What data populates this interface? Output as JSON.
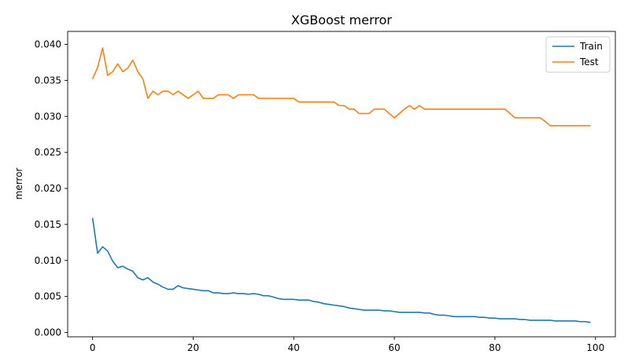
{
  "chart_data": {
    "type": "line",
    "title": "XGBoost merror",
    "xlabel": "",
    "ylabel": "merror",
    "xlim": [
      -4.95,
      103.95
    ],
    "ylim": [
      -0.0006,
      0.0418
    ],
    "xticks": [
      0,
      20,
      40,
      60,
      80,
      100
    ],
    "yticks": [
      0.0,
      0.005,
      0.01,
      0.015,
      0.02,
      0.025,
      0.03,
      0.035,
      0.04
    ],
    "ytick_labels": [
      "0.000",
      "0.005",
      "0.010",
      "0.015",
      "0.020",
      "0.025",
      "0.030",
      "0.035",
      "0.040"
    ],
    "grid": false,
    "legend_position": "top-right",
    "series": [
      {
        "name": "Train",
        "color": "#1f77b4",
        "x": [
          0,
          1,
          2,
          3,
          4,
          5,
          6,
          7,
          8,
          9,
          10,
          11,
          12,
          13,
          14,
          15,
          16,
          17,
          18,
          19,
          20,
          21,
          22,
          23,
          24,
          25,
          26,
          27,
          28,
          29,
          30,
          31,
          32,
          33,
          34,
          35,
          36,
          37,
          38,
          39,
          40,
          41,
          42,
          43,
          44,
          45,
          46,
          47,
          48,
          49,
          50,
          51,
          52,
          53,
          54,
          55,
          56,
          57,
          58,
          59,
          60,
          61,
          62,
          63,
          64,
          65,
          66,
          67,
          68,
          69,
          70,
          71,
          72,
          73,
          74,
          75,
          76,
          77,
          78,
          79,
          80,
          81,
          82,
          83,
          84,
          85,
          86,
          87,
          88,
          89,
          90,
          91,
          92,
          93,
          94,
          95,
          96,
          97,
          98,
          99
        ],
        "y": [
          0.0159,
          0.011,
          0.0119,
          0.0113,
          0.0099,
          0.009,
          0.0092,
          0.0088,
          0.0085,
          0.0076,
          0.0073,
          0.0076,
          0.007,
          0.0067,
          0.0063,
          0.006,
          0.006,
          0.0065,
          0.0062,
          0.0061,
          0.006,
          0.0059,
          0.0058,
          0.0058,
          0.0055,
          0.0055,
          0.0054,
          0.0054,
          0.0055,
          0.0054,
          0.0054,
          0.0053,
          0.0054,
          0.0053,
          0.0051,
          0.0051,
          0.0049,
          0.0047,
          0.0046,
          0.0046,
          0.0046,
          0.0045,
          0.0045,
          0.0045,
          0.0043,
          0.0042,
          0.004,
          0.0039,
          0.0038,
          0.0037,
          0.0036,
          0.0034,
          0.0033,
          0.0032,
          0.0031,
          0.0031,
          0.0031,
          0.0031,
          0.003,
          0.003,
          0.0029,
          0.0028,
          0.0028,
          0.0028,
          0.0028,
          0.0028,
          0.0027,
          0.0027,
          0.0025,
          0.0024,
          0.0024,
          0.0023,
          0.0022,
          0.0022,
          0.0022,
          0.0022,
          0.0022,
          0.0021,
          0.0021,
          0.002,
          0.002,
          0.0019,
          0.0019,
          0.0019,
          0.0019,
          0.0018,
          0.0018,
          0.0017,
          0.0017,
          0.0017,
          0.0017,
          0.0017,
          0.0016,
          0.0016,
          0.0016,
          0.0016,
          0.0016,
          0.0015,
          0.0015,
          0.0014
        ]
      },
      {
        "name": "Test",
        "color": "#ff7f0e",
        "x": [
          0,
          1,
          2,
          3,
          4,
          5,
          6,
          7,
          8,
          9,
          10,
          11,
          12,
          13,
          14,
          15,
          16,
          17,
          18,
          19,
          20,
          21,
          22,
          23,
          24,
          25,
          26,
          27,
          28,
          29,
          30,
          31,
          32,
          33,
          34,
          35,
          36,
          37,
          38,
          39,
          40,
          41,
          42,
          43,
          44,
          45,
          46,
          47,
          48,
          49,
          50,
          51,
          52,
          53,
          54,
          55,
          56,
          57,
          58,
          59,
          60,
          61,
          62,
          63,
          64,
          65,
          66,
          67,
          68,
          69,
          70,
          71,
          72,
          73,
          74,
          75,
          76,
          77,
          78,
          79,
          80,
          81,
          82,
          83,
          84,
          85,
          86,
          87,
          88,
          89,
          90,
          91,
          92,
          93,
          94,
          95,
          96,
          97,
          98,
          99
        ],
        "y": [
          0.0352,
          0.0368,
          0.0395,
          0.0357,
          0.0362,
          0.0373,
          0.0362,
          0.0367,
          0.0378,
          0.0362,
          0.0352,
          0.0325,
          0.0335,
          0.033,
          0.0335,
          0.0335,
          0.033,
          0.0335,
          0.033,
          0.0325,
          0.033,
          0.0335,
          0.0325,
          0.0325,
          0.0325,
          0.033,
          0.033,
          0.033,
          0.0325,
          0.033,
          0.033,
          0.033,
          0.033,
          0.0325,
          0.0325,
          0.0325,
          0.0325,
          0.0325,
          0.0325,
          0.0325,
          0.0325,
          0.032,
          0.032,
          0.032,
          0.032,
          0.032,
          0.032,
          0.032,
          0.032,
          0.0315,
          0.0315,
          0.031,
          0.031,
          0.0304,
          0.0304,
          0.0304,
          0.031,
          0.031,
          0.031,
          0.0304,
          0.0298,
          0.0304,
          0.031,
          0.0315,
          0.031,
          0.0315,
          0.031,
          0.031,
          0.031,
          0.031,
          0.031,
          0.031,
          0.031,
          0.031,
          0.031,
          0.031,
          0.031,
          0.031,
          0.031,
          0.031,
          0.031,
          0.031,
          0.031,
          0.0304,
          0.0298,
          0.0298,
          0.0298,
          0.0298,
          0.0298,
          0.0298,
          0.0293,
          0.0287,
          0.0287,
          0.0287,
          0.0287,
          0.0287,
          0.0287,
          0.0287,
          0.0287,
          0.0287
        ]
      }
    ]
  }
}
